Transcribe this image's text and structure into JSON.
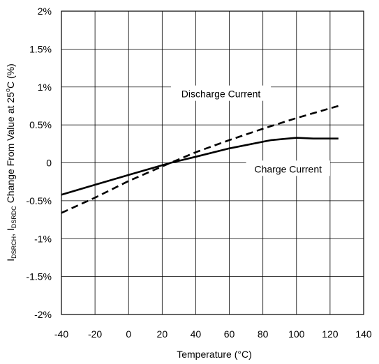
{
  "chart_data": {
    "type": "line",
    "xlabel": "Temperature  (°C)",
    "ylabel": {
      "prefix": "I",
      "sub1": "DSRCH",
      "mid": ", I",
      "sub2": "DSRDC",
      "rest": " Change From Value at 25",
      "sup": "o",
      "tail": "C (%)"
    },
    "xlim": [
      -40,
      140
    ],
    "ylim": [
      -2,
      2
    ],
    "x_ticks": [
      -40,
      -20,
      0,
      20,
      40,
      60,
      80,
      100,
      120,
      140
    ],
    "x_tick_labels": [
      "-40",
      "-20",
      "0",
      "20",
      "40",
      "60",
      "80",
      "100",
      "120",
      "140"
    ],
    "y_ticks": [
      -2,
      -1.5,
      -1,
      -0.5,
      0,
      0.5,
      1,
      1.5,
      2
    ],
    "y_tick_labels": [
      "-2%",
      "-1.5%",
      "-1%",
      "-0.5%",
      "0",
      "0.5%",
      "1%",
      "1.5%",
      "2%"
    ],
    "grid": true,
    "series": [
      {
        "name": "Discharge Current",
        "style": "dashed",
        "color": "#000000",
        "x": [
          -40,
          -20,
          0,
          25,
          40,
          60,
          80,
          100,
          125
        ],
        "y": [
          -0.66,
          -0.46,
          -0.24,
          0.0,
          0.14,
          0.3,
          0.45,
          0.59,
          0.75
        ]
      },
      {
        "name": "Charge Current",
        "style": "solid",
        "color": "#000000",
        "x": [
          -40,
          -20,
          0,
          25,
          40,
          60,
          85,
          100,
          110,
          125
        ],
        "y": [
          -0.42,
          -0.29,
          -0.16,
          0.0,
          0.08,
          0.19,
          0.3,
          0.33,
          0.32,
          0.32
        ]
      }
    ],
    "annotations": [
      {
        "text": "Discharge Current",
        "x": 55,
        "y": 0.9
      },
      {
        "text": "Charge Current",
        "x": 95,
        "y": -0.09
      }
    ]
  }
}
